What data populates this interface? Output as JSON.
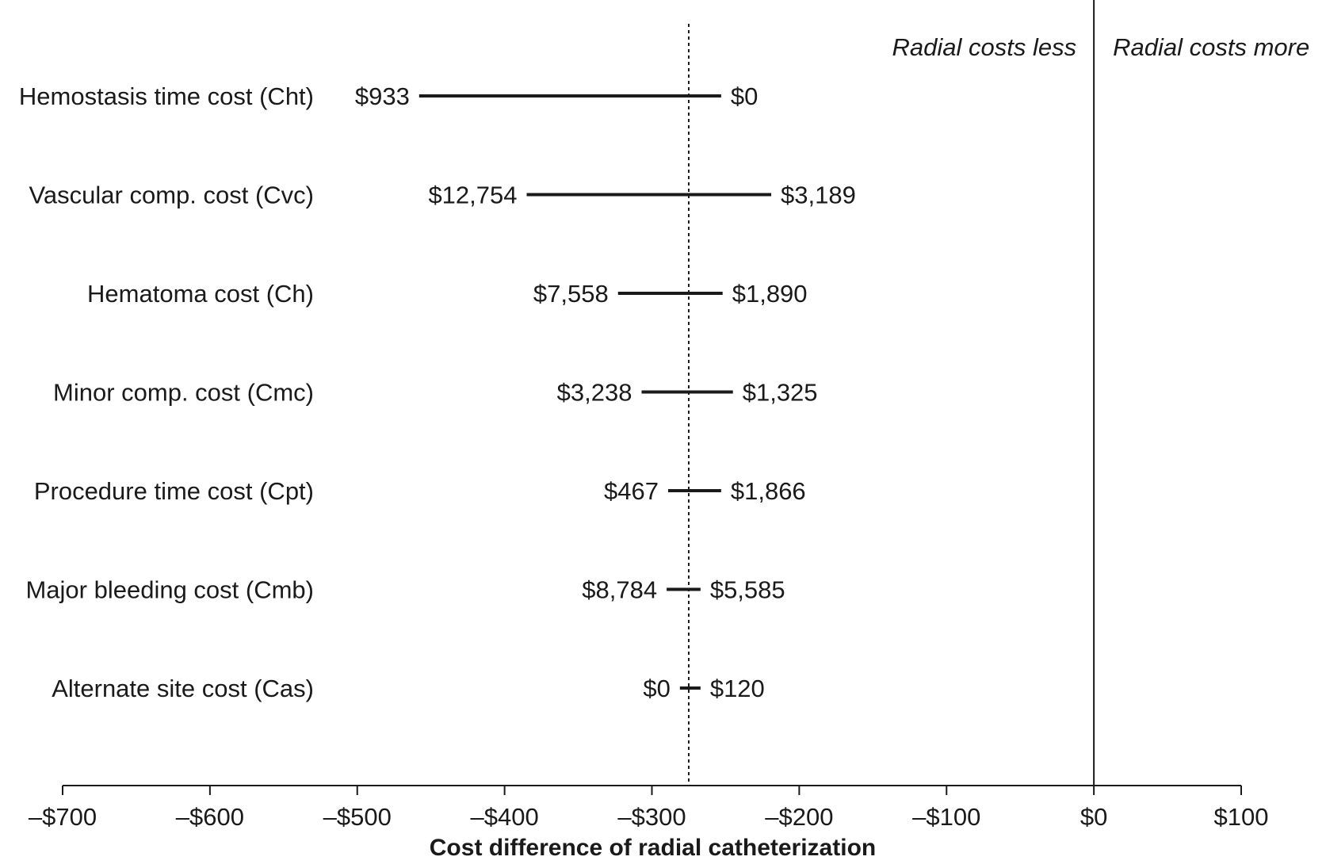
{
  "chart_data": {
    "type": "tornado",
    "xlabel": "Cost difference of radial catheterization",
    "xlim": [
      -700,
      100
    ],
    "x_ticks": [
      -700,
      -600,
      -500,
      -400,
      -300,
      -200,
      -100,
      0,
      100
    ],
    "x_tick_labels": [
      "–$700",
      "–$600",
      "–$500",
      "–$400",
      "–$300",
      "–$200",
      "–$100",
      "$0",
      "$100"
    ],
    "base_value": -275,
    "reference_line": 0,
    "region_labels": {
      "left": "Radial costs less",
      "right": "Radial costs more"
    },
    "rows": [
      {
        "label": "Hemostasis time cost (Cht)",
        "low": -458,
        "high": -253,
        "low_label": "$933",
        "high_label": "$0"
      },
      {
        "label": "Vascular comp. cost (Cvc)",
        "low": -385,
        "high": -219,
        "low_label": "$12,754",
        "high_label": "$3,189"
      },
      {
        "label": "Hematoma cost (Ch)",
        "low": -323,
        "high": -252,
        "low_label": "$7,558",
        "high_label": "$1,890"
      },
      {
        "label": "Minor comp. cost (Cmc)",
        "low": -307,
        "high": -245,
        "low_label": "$3,238",
        "high_label": "$1,325"
      },
      {
        "label": "Procedure time cost (Cpt)",
        "low": -289,
        "high": -253,
        "low_label": "$467",
        "high_label": "$1,866"
      },
      {
        "label": "Major bleeding cost (Cmb)",
        "low": -290,
        "high": -267,
        "low_label": "$8,784",
        "high_label": "$5,585"
      },
      {
        "label": "Alternate site cost (Cas)",
        "low": -281,
        "high": -267,
        "low_label": "$0",
        "high_label": "$120"
      }
    ]
  }
}
